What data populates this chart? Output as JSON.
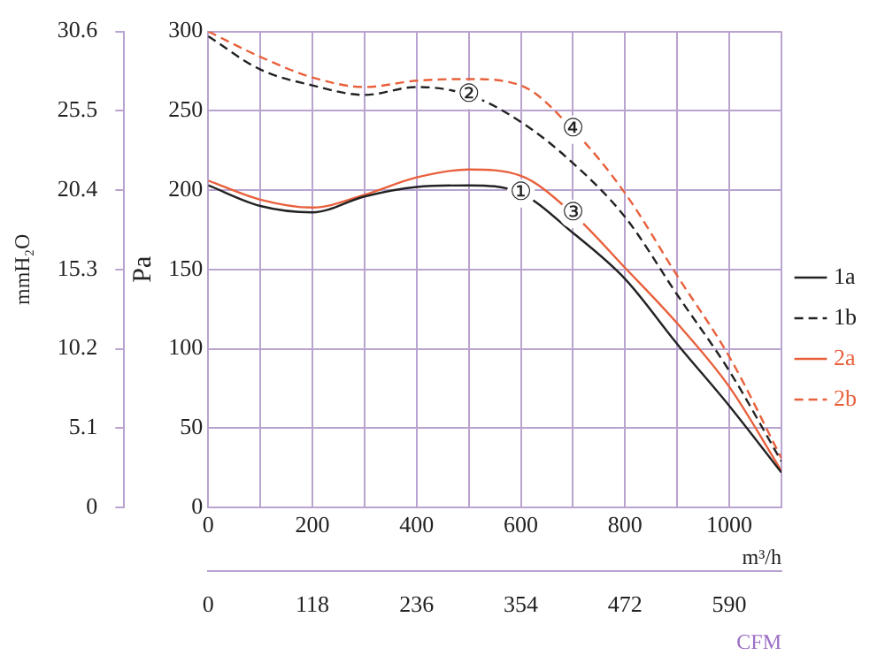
{
  "chart_data": {
    "type": "line",
    "xlabel": "m³/h",
    "x2label": "CFM",
    "ylabel": "Pa",
    "y2label": "mmH₂O",
    "x": [
      0,
      100,
      200,
      300,
      400,
      500,
      600,
      700,
      800,
      900,
      1000,
      1100
    ],
    "series": [
      {
        "name": "1a",
        "color": "#222222",
        "line_style": "solid",
        "values": [
          203,
          190,
          186,
          196,
          202,
          203,
          198,
          173,
          144,
          103,
          64,
          22
        ]
      },
      {
        "name": "1b",
        "color": "#222222",
        "line_style": "dashed",
        "values": [
          297,
          276,
          266,
          260,
          265,
          260,
          243,
          217,
          183,
          134,
          86,
          29
        ]
      },
      {
        "name": "2a",
        "color": "#e8603c",
        "line_style": "solid",
        "values": [
          206,
          194,
          189,
          197,
          208,
          213,
          209,
          185,
          151,
          116,
          76,
          23
        ]
      },
      {
        "name": "2b",
        "color": "#e8603c",
        "line_style": "dashed",
        "values": [
          300,
          284,
          271,
          265,
          269,
          270,
          266,
          238,
          198,
          146,
          95,
          31
        ]
      }
    ],
    "xlim": [
      0,
      1100
    ],
    "xticks": [
      0,
      {
        "value": 100,
        "label": null
      },
      200,
      {
        "value": 300,
        "label": null
      },
      400,
      {
        "value": 500,
        "label": null
      },
      600,
      {
        "value": 700,
        "label": null
      },
      800,
      {
        "value": 900,
        "label": null
      },
      1000,
      {
        "value": 1100,
        "label": null
      }
    ],
    "x2lim": [
      0,
      649
    ],
    "x2ticks": [
      0,
      118,
      236,
      354,
      472,
      590
    ],
    "ylim": [
      0,
      300
    ],
    "yticks": [
      0,
      50,
      100,
      150,
      200,
      250,
      300
    ],
    "y2lim": [
      0,
      30.6
    ],
    "y2ticks": [
      0,
      5.1,
      10.2,
      15.3,
      20.4,
      25.5,
      30.6
    ],
    "grid": true,
    "legend": "right",
    "marker": "none",
    "annotations": [
      {
        "text": "①",
        "x": 600,
        "y": 198
      },
      {
        "text": "②",
        "x": 500,
        "y": 260
      },
      {
        "text": "③",
        "x": 700,
        "y": 185
      },
      {
        "text": "④",
        "x": 700,
        "y": 238
      }
    ]
  }
}
